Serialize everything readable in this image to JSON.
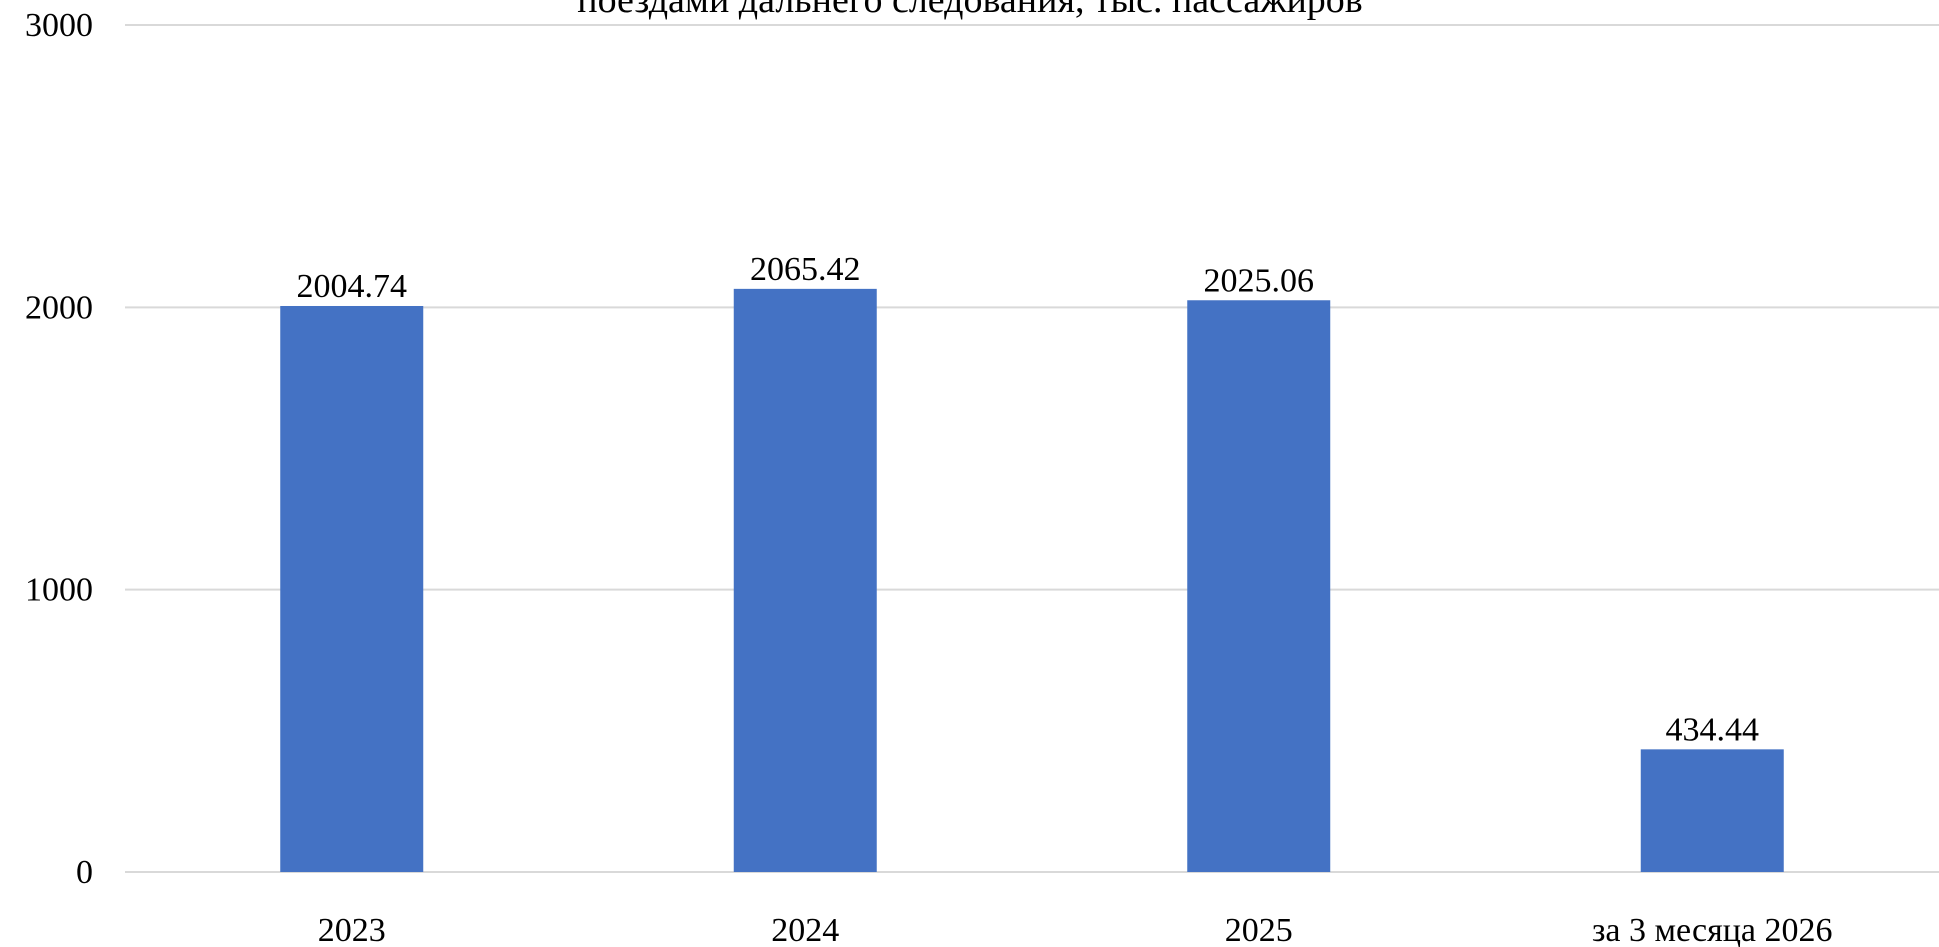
{
  "chart_data": {
    "type": "bar",
    "title": "поездами дальнего следования, тыс. пассажиров",
    "categories": [
      "2023",
      "2024",
      "2025",
      "за 3 месяца 2026"
    ],
    "values": [
      2004.74,
      2065.42,
      2025.06,
      434.44
    ],
    "value_labels": [
      "2004.74",
      "2065.42",
      "2025.06",
      "434.44"
    ],
    "y_ticks": [
      "0",
      "1000",
      "2000",
      "3000"
    ],
    "ylim": [
      0,
      3000
    ],
    "xlabel": "",
    "ylabel": "",
    "grid": true,
    "legend": "none",
    "colors": {
      "bar": "#4472C4",
      "grid": "#D9D9D9",
      "text": "#000000"
    }
  }
}
